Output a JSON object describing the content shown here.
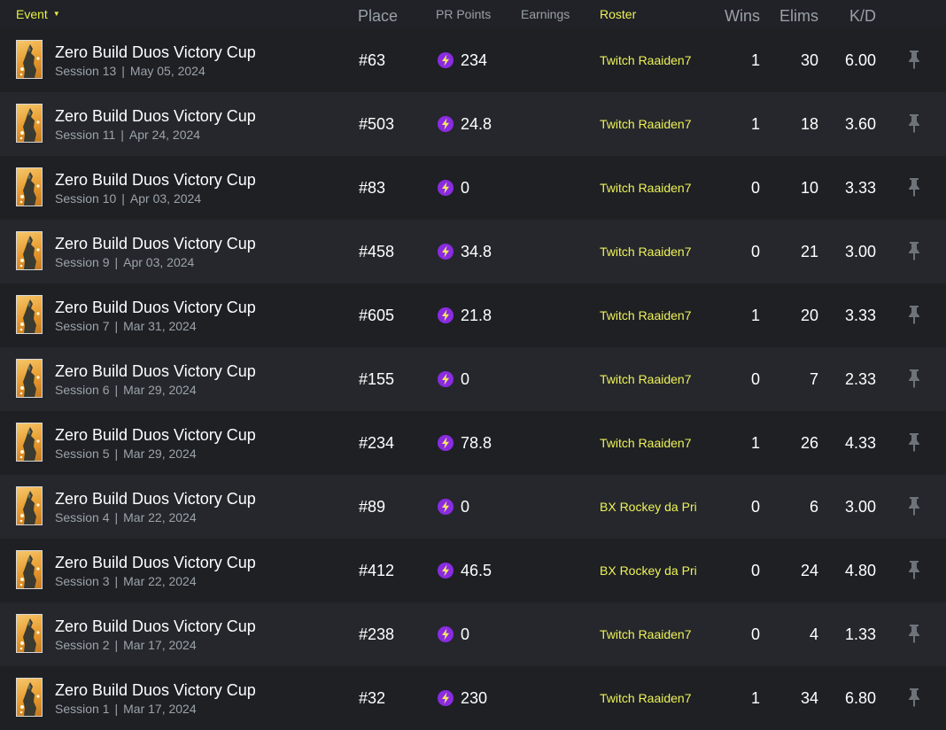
{
  "header": {
    "event": "Event",
    "place": "Place",
    "pr_points": "PR Points",
    "earnings": "Earnings",
    "roster": "Roster",
    "wins": "Wins",
    "elims": "Elims",
    "kd": "K/D"
  },
  "colors": {
    "accent_yellow": "#e9ef45",
    "roster_yellow": "#eef258",
    "pr_purple": "#8a2be2"
  },
  "icons": {
    "sort": "caret-down-icon",
    "pr": "lightning-bolt-icon",
    "pin": "pin-icon",
    "event": "event-thumbnail"
  },
  "rows": [
    {
      "title": "Zero Build Duos Victory Cup",
      "session": "Session 13",
      "date": "May 05, 2024",
      "place": "#63",
      "points": "234",
      "roster": "Twitch Raaiden7",
      "wins": "1",
      "elims": "30",
      "kd": "6.00"
    },
    {
      "title": "Zero Build Duos Victory Cup",
      "session": "Session 11",
      "date": "Apr 24, 2024",
      "place": "#503",
      "points": "24.8",
      "roster": "Twitch Raaiden7",
      "wins": "1",
      "elims": "18",
      "kd": "3.60"
    },
    {
      "title": "Zero Build Duos Victory Cup",
      "session": "Session 10",
      "date": "Apr 03, 2024",
      "place": "#83",
      "points": "0",
      "roster": "Twitch Raaiden7",
      "wins": "0",
      "elims": "10",
      "kd": "3.33"
    },
    {
      "title": "Zero Build Duos Victory Cup",
      "session": "Session 9",
      "date": "Apr 03, 2024",
      "place": "#458",
      "points": "34.8",
      "roster": "Twitch Raaiden7",
      "wins": "0",
      "elims": "21",
      "kd": "3.00"
    },
    {
      "title": "Zero Build Duos Victory Cup",
      "session": "Session 7",
      "date": "Mar 31, 2024",
      "place": "#605",
      "points": "21.8",
      "roster": "Twitch Raaiden7",
      "wins": "1",
      "elims": "20",
      "kd": "3.33"
    },
    {
      "title": "Zero Build Duos Victory Cup",
      "session": "Session 6",
      "date": "Mar 29, 2024",
      "place": "#155",
      "points": "0",
      "roster": "Twitch Raaiden7",
      "wins": "0",
      "elims": "7",
      "kd": "2.33"
    },
    {
      "title": "Zero Build Duos Victory Cup",
      "session": "Session 5",
      "date": "Mar 29, 2024",
      "place": "#234",
      "points": "78.8",
      "roster": "Twitch Raaiden7",
      "wins": "1",
      "elims": "26",
      "kd": "4.33"
    },
    {
      "title": "Zero Build Duos Victory Cup",
      "session": "Session 4",
      "date": "Mar 22, 2024",
      "place": "#89",
      "points": "0",
      "roster": "BX Rockey da Pri",
      "wins": "0",
      "elims": "6",
      "kd": "3.00"
    },
    {
      "title": "Zero Build Duos Victory Cup",
      "session": "Session 3",
      "date": "Mar 22, 2024",
      "place": "#412",
      "points": "46.5",
      "roster": "BX Rockey da Pri",
      "wins": "0",
      "elims": "24",
      "kd": "4.80"
    },
    {
      "title": "Zero Build Duos Victory Cup",
      "session": "Session 2",
      "date": "Mar 17, 2024",
      "place": "#238",
      "points": "0",
      "roster": "Twitch Raaiden7",
      "wins": "0",
      "elims": "4",
      "kd": "1.33"
    },
    {
      "title": "Zero Build Duos Victory Cup",
      "session": "Session 1",
      "date": "Mar 17, 2024",
      "place": "#32",
      "points": "230",
      "roster": "Twitch Raaiden7",
      "wins": "1",
      "elims": "34",
      "kd": "6.80"
    }
  ]
}
